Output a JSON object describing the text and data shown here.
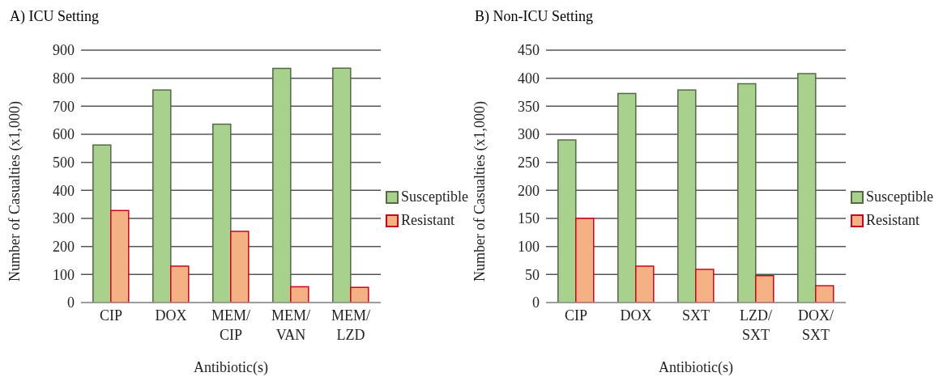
{
  "chart_data": [
    {
      "type": "bar",
      "title": "A)  ICU Setting",
      "xlabel": "Antibiotic(s)",
      "ylabel": "Number of Casualties (x1,000)",
      "categories": [
        "CIP",
        "DOX",
        "MEM/CIP",
        "MEM/VAN",
        "MEM/LZD"
      ],
      "series": [
        {
          "name": "Susceptible",
          "color": "#a9d18e",
          "values": [
            562,
            758,
            636,
            835,
            836
          ]
        },
        {
          "name": "Resistant",
          "color": "#f4b183",
          "values": [
            328,
            130,
            254,
            56,
            54
          ]
        }
      ],
      "ylim": [
        0,
        900
      ],
      "yticks": [
        0,
        100,
        200,
        300,
        400,
        500,
        600,
        700,
        800,
        900
      ],
      "grid": "y",
      "legend": "right"
    },
    {
      "type": "bar",
      "title": "B) Non-ICU Setting",
      "xlabel": "Antibiotic(s)",
      "ylabel": "Number of Casualties (x1,000)",
      "categories": [
        "CIP",
        "DOX",
        "SXT",
        "LZD/SXT",
        "DOX/SXT"
      ],
      "series": [
        {
          "name": "Susceptible",
          "color": "#a9d18e",
          "values": [
            290,
            373,
            379,
            390,
            408
          ]
        },
        {
          "name": "Resistant",
          "color": "#f4b183",
          "values": [
            150,
            65,
            59,
            48,
            30
          ]
        }
      ],
      "ylim": [
        0,
        450
      ],
      "yticks": [
        0,
        50,
        100,
        150,
        200,
        250,
        300,
        350,
        400,
        450
      ],
      "grid": "y",
      "legend": "right"
    }
  ]
}
